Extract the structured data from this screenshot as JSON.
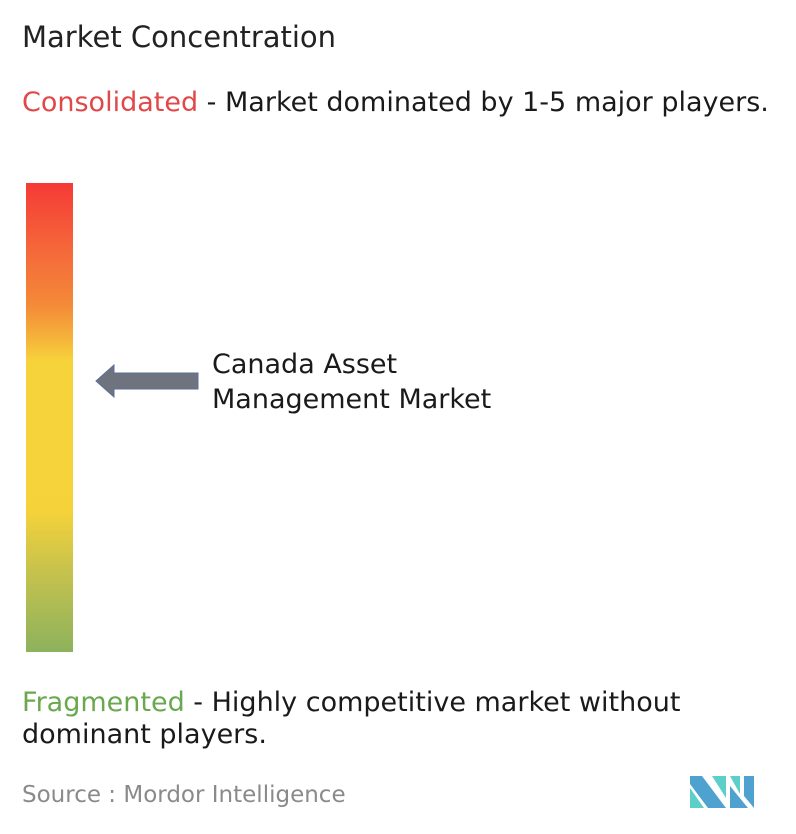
{
  "title": "Market Concentration",
  "consolidated": {
    "label": "Consolidated",
    "description": " - Market dominated by 1-5 major players.",
    "color": "#e0484a"
  },
  "fragmented": {
    "label": "Fragmented",
    "description": " - Highly competitive market without dominant players.",
    "color": "#6aa84f"
  },
  "scale": {
    "top_color": "#f53a36",
    "middle_color": "#f7d33b",
    "bottom_color": "#8db25c",
    "market_position_from_top": 0.42
  },
  "market": {
    "name_line1": "Canada Asset",
    "name_line2": "Management Market",
    "arrow_color": "#6e737d"
  },
  "source": {
    "text": "Source :  Mordor Intelligence"
  },
  "logo": {
    "name": "mordor-intelligence-logo",
    "colors": [
      "#4fa1d0",
      "#5ccfc9"
    ]
  }
}
